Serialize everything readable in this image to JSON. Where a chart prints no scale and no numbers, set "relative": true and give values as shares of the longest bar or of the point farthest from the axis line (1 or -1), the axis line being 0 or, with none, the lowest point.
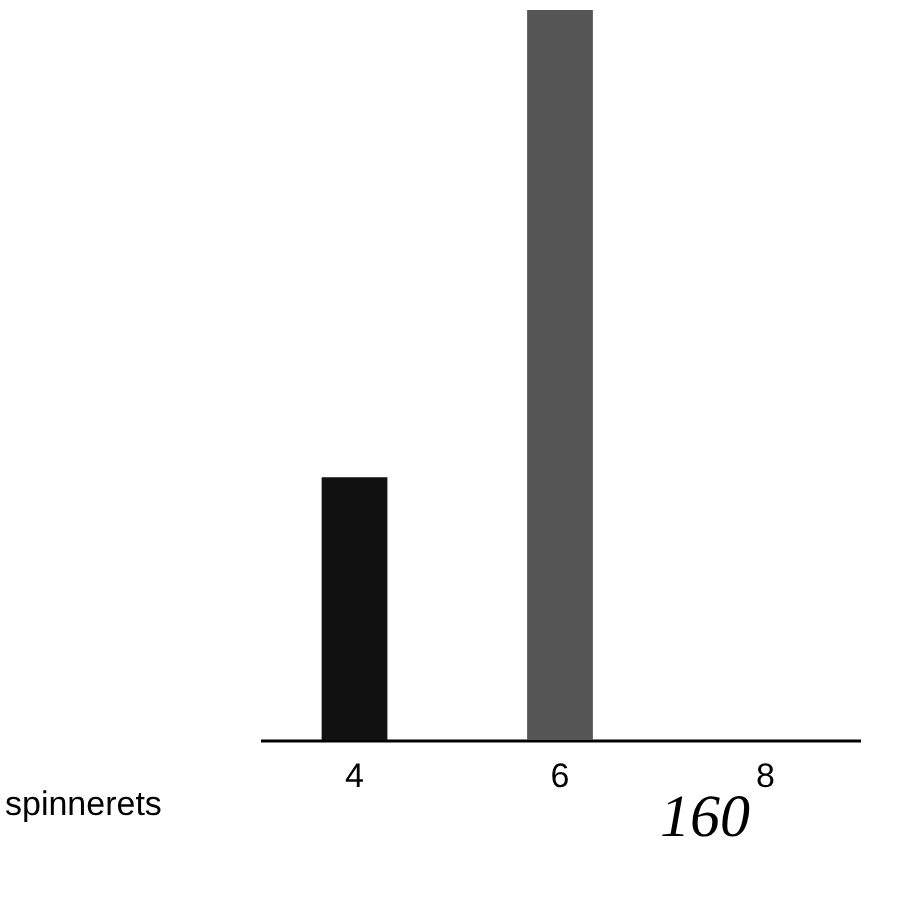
{
  "chart_data": {
    "type": "bar",
    "relative": true,
    "xlabel": "spinnerets",
    "categories": [
      "4",
      "6",
      "8"
    ],
    "values": [
      0.36,
      1,
      0
    ],
    "colors": [
      "#111111",
      "#555555",
      "#555555"
    ],
    "annotations": [
      "160"
    ]
  }
}
